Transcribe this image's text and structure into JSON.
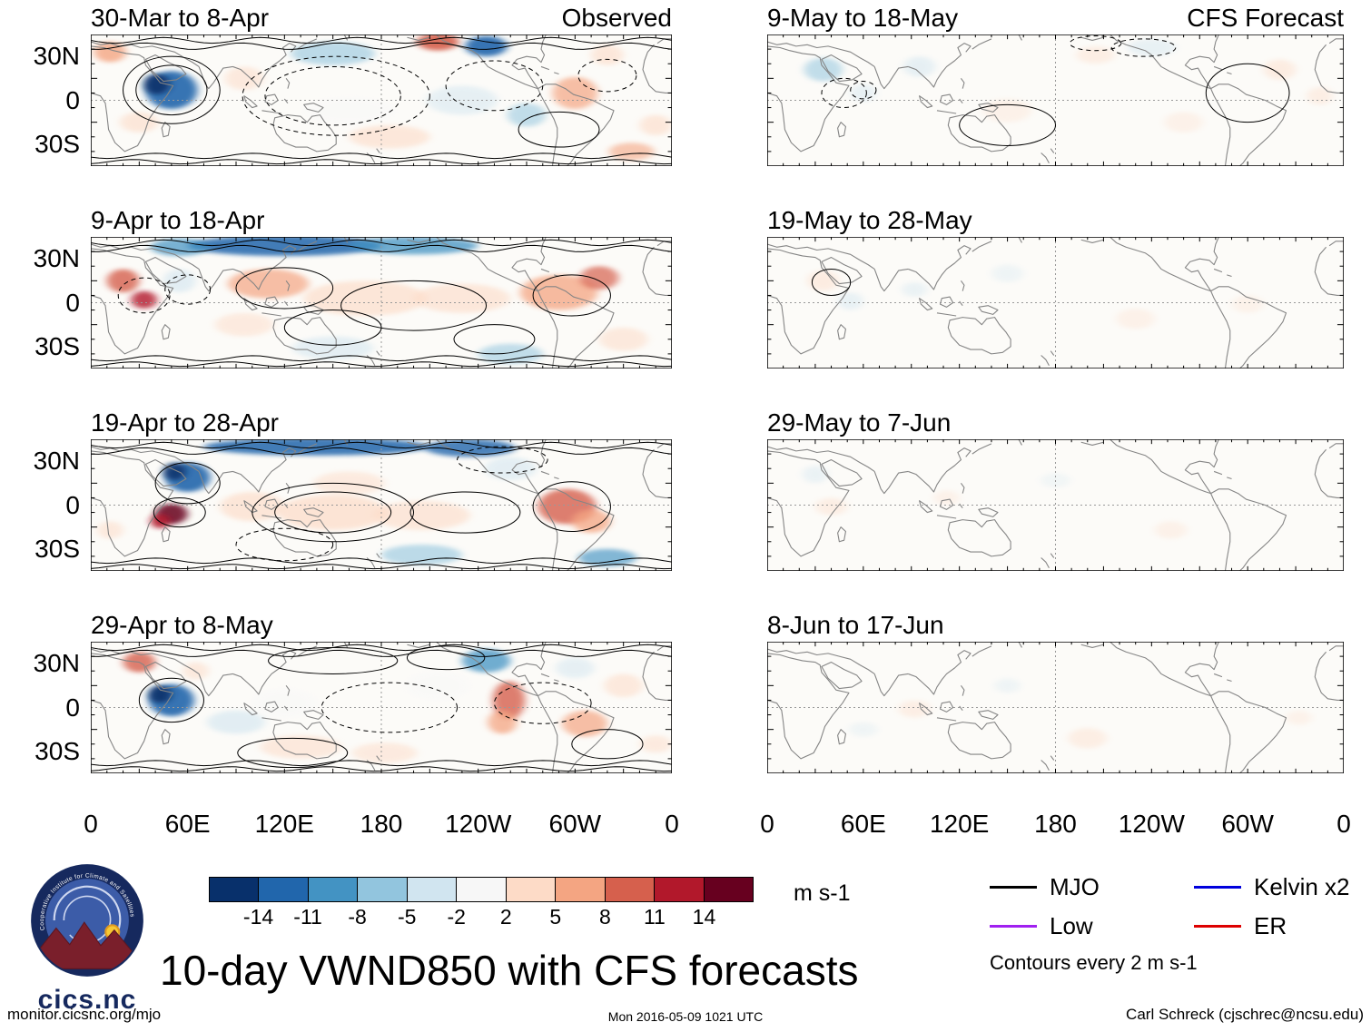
{
  "observed_header": "Observed",
  "forecast_header": "CFS Forecast",
  "axes": {
    "y_ticks": [
      "30N",
      "0",
      "30S"
    ],
    "x_ticks": [
      "0",
      "60E",
      "120E",
      "180",
      "120W",
      "60W",
      "0"
    ]
  },
  "colorbar": {
    "tick_labels": [
      "-14",
      "-11",
      "-8",
      "-5",
      "-2",
      "2",
      "5",
      "8",
      "11",
      "14"
    ],
    "units_label": "m s-1"
  },
  "legend": {
    "items": [
      {
        "label": "MJO",
        "color": "#000000"
      },
      {
        "label": "Kelvin x2",
        "color": "#0000dd"
      },
      {
        "label": "Low",
        "color": "#a020f0"
      },
      {
        "label": "ER",
        "color": "#dd0000"
      }
    ],
    "note": "Contours every 2 m s-1"
  },
  "title": "10-day VWND850 with CFS forecasts",
  "logo": {
    "name": "cics.nc",
    "ring_text": "Cooperative Institute for Climate and Satellites"
  },
  "footer": {
    "left": "monitor.cicsnc.org/mjo",
    "center": "Mon 2016-05-09 1021 UTC",
    "right": "Carl Schreck (cjschrec@ncsu.edu)"
  },
  "chart_data": {
    "type": "heatmap",
    "variable": "VWND850 anomaly maps with CFS forecasts",
    "units": "m s-1",
    "contour_interval": "Contours every 2 m s-1",
    "lon_range": [
      0,
      360
    ],
    "lat_labels": [
      "30N",
      "0",
      "30S"
    ],
    "x_tick_degrees": [
      0,
      60,
      120,
      180,
      240,
      300,
      360
    ],
    "colorbar": {
      "boundaries": [
        -14,
        -11,
        -8,
        -5,
        -2,
        2,
        5,
        8,
        11,
        14
      ],
      "colors": [
        "#08306b",
        "#2166ac",
        "#4393c3",
        "#92c5de",
        "#d1e5f0",
        "#f7f7f7",
        "#fddbc7",
        "#f4a582",
        "#d6604d",
        "#b2182b",
        "#67001f"
      ]
    },
    "panels": {
      "observed": [
        {
          "title": "30-Mar to 8-Apr",
          "waves": true,
          "blobs": [
            [
              50,
              38,
              16,
              13,
              1,
              0.9
            ],
            [
              41,
              34,
              8,
              7,
              0,
              0.9
            ],
            [
              12,
              12,
              10,
              7,
              7,
              0.8
            ],
            [
              30,
              60,
              12,
              7,
              6,
              0.6
            ],
            [
              95,
              30,
              12,
              8,
              6,
              0.55
            ],
            [
              150,
              13,
              26,
              8,
              3,
              0.6
            ],
            [
              215,
              5,
              13,
              6,
              8,
              0.9
            ],
            [
              245,
              8,
              13,
              7,
              1,
              0.9
            ],
            [
              230,
              45,
              22,
              10,
              4,
              0.5
            ],
            [
              185,
              70,
              25,
              8,
              6,
              0.6
            ],
            [
              160,
              52,
              28,
              9,
              5,
              0.45
            ],
            [
              270,
              55,
              12,
              8,
              3,
              0.55
            ],
            [
              300,
              40,
              14,
              11,
              7,
              0.7
            ],
            [
              320,
              14,
              10,
              7,
              6,
              0.6
            ],
            [
              350,
              62,
              10,
              7,
              6,
              0.6
            ],
            [
              335,
              80,
              14,
              6,
              7,
              0.6
            ]
          ],
          "contours": [
            [
              50,
              38,
              22,
              17,
              0
            ],
            [
              50,
              38,
              30,
              23,
              0
            ],
            [
              150,
              42,
              42,
              20,
              1
            ],
            [
              152,
              42,
              58,
              27,
              1
            ],
            [
              250,
              35,
              30,
              17,
              1
            ],
            [
              320,
              28,
              18,
              11,
              1
            ],
            [
              290,
              65,
              25,
              12,
              0
            ]
          ]
        },
        {
          "title": "9-Apr to 18-Apr",
          "waves": true,
          "blobs": [
            [
              120,
              6,
              60,
              7,
              1,
              0.85
            ],
            [
              200,
              6,
              40,
              6,
              2,
              0.75
            ],
            [
              55,
              7,
              18,
              6,
              2,
              0.7
            ],
            [
              20,
              30,
              10,
              8,
              8,
              0.8
            ],
            [
              33,
              43,
              8,
              6,
              9,
              0.8
            ],
            [
              55,
              30,
              10,
              8,
              4,
              0.6
            ],
            [
              110,
              32,
              25,
              10,
              7,
              0.7
            ],
            [
              170,
              42,
              38,
              12,
              6,
              0.65
            ],
            [
              230,
              42,
              30,
              10,
              6,
              0.6
            ],
            [
              290,
              38,
              24,
              12,
              7,
              0.75
            ],
            [
              315,
              28,
              12,
              8,
              8,
              0.7
            ],
            [
              150,
              76,
              25,
              8,
              4,
              0.55
            ],
            [
              260,
              80,
              20,
              7,
              3,
              0.55
            ],
            [
              330,
              70,
              15,
              8,
              6,
              0.55
            ],
            [
              95,
              60,
              18,
              8,
              6,
              0.5
            ]
          ],
          "contours": [
            [
              33,
              40,
              16,
              12,
              1
            ],
            [
              60,
              36,
              14,
              10,
              1
            ],
            [
              120,
              35,
              30,
              14,
              0
            ],
            [
              200,
              47,
              45,
              17,
              0
            ],
            [
              298,
              40,
              24,
              14,
              0
            ],
            [
              250,
              70,
              25,
              10,
              0
            ],
            [
              150,
              62,
              30,
              12,
              0
            ]
          ]
        },
        {
          "title": "19-Apr to 28-Apr",
          "waves": true,
          "blobs": [
            [
              140,
              5,
              70,
              6,
              1,
              0.85
            ],
            [
              235,
              6,
              28,
              6,
              1,
              0.8
            ],
            [
              60,
              26,
              14,
              10,
              1,
              0.9
            ],
            [
              52,
              22,
              7,
              6,
              0,
              0.85
            ],
            [
              50,
              51,
              10,
              7,
              10,
              0.85
            ],
            [
              43,
              56,
              6,
              5,
              9,
              0.85
            ],
            [
              100,
              46,
              20,
              10,
              6,
              0.65
            ],
            [
              150,
              50,
              34,
              12,
              6,
              0.7
            ],
            [
              205,
              52,
              30,
              10,
              6,
              0.6
            ],
            [
              160,
              30,
              22,
              8,
              6,
              0.5
            ],
            [
              295,
              46,
              18,
              12,
              8,
              0.8
            ],
            [
              310,
              56,
              12,
              8,
              7,
              0.75
            ],
            [
              205,
              79,
              25,
              7,
              3,
              0.6
            ],
            [
              320,
              81,
              18,
              6,
              2,
              0.65
            ],
            [
              260,
              20,
              16,
              8,
              4,
              0.55
            ],
            [
              12,
              62,
              8,
              6,
              6,
              0.55
            ]
          ],
          "contours": [
            [
              60,
              30,
              20,
              14,
              0
            ],
            [
              55,
              50,
              16,
              10,
              0
            ],
            [
              150,
              50,
              50,
              20,
              0
            ],
            [
              150,
              50,
              36,
              14,
              0
            ],
            [
              232,
              50,
              34,
              14,
              0
            ],
            [
              298,
              46,
              24,
              17,
              0
            ],
            [
              120,
              72,
              30,
              11,
              1
            ],
            [
              255,
              14,
              28,
              9,
              1
            ]
          ]
        },
        {
          "title": "29-Apr to 8-May",
          "waves": true,
          "blobs": [
            [
              50,
              40,
              14,
              11,
              1,
              0.9
            ],
            [
              43,
              36,
              7,
              6,
              0,
              0.9
            ],
            [
              30,
              14,
              10,
              7,
              8,
              0.8
            ],
            [
              65,
              20,
              8,
              6,
              6,
              0.55
            ],
            [
              90,
              55,
              18,
              8,
              4,
              0.6
            ],
            [
              120,
              42,
              20,
              10,
              5,
              0.45
            ],
            [
              245,
              13,
              15,
              8,
              2,
              0.75
            ],
            [
              259,
              40,
              10,
              13,
              8,
              0.8
            ],
            [
              255,
              55,
              9,
              8,
              7,
              0.75
            ],
            [
              130,
              72,
              25,
              8,
              6,
              0.55
            ],
            [
              182,
              76,
              20,
              7,
              6,
              0.5
            ],
            [
              306,
              56,
              14,
              9,
              7,
              0.7
            ],
            [
              330,
              30,
              12,
              8,
              6,
              0.55
            ],
            [
              215,
              30,
              20,
              10,
              5,
              0.4
            ],
            [
              300,
              18,
              12,
              7,
              4,
              0.5
            ],
            [
              350,
              70,
              10,
              6,
              6,
              0.5
            ]
          ],
          "contours": [
            [
              150,
              13,
              40,
              9,
              0
            ],
            [
              220,
              11,
              24,
              8,
              0
            ],
            [
              50,
              40,
              20,
              15,
              0
            ],
            [
              185,
              45,
              42,
              17,
              1
            ],
            [
              280,
              42,
              30,
              14,
              1
            ],
            [
              125,
              76,
              34,
              10,
              0
            ],
            [
              320,
              70,
              22,
              10,
              0
            ]
          ]
        }
      ],
      "forecast": [
        {
          "title": "9-May to 18-May",
          "waves": false,
          "blobs": [
            [
              35,
              24,
              12,
              8,
              3,
              0.55
            ],
            [
              95,
              22,
              10,
              7,
              4,
              0.5
            ],
            [
              60,
              40,
              8,
              6,
              4,
              0.45
            ],
            [
              205,
              14,
              12,
              6,
              6,
              0.4
            ],
            [
              240,
              9,
              15,
              6,
              4,
              0.45
            ],
            [
              320,
              24,
              10,
              7,
              6,
              0.45
            ],
            [
              345,
              42,
              8,
              6,
              6,
              0.4
            ],
            [
              150,
              52,
              15,
              8,
              6,
              0.3
            ],
            [
              260,
              60,
              12,
              7,
              6,
              0.3
            ]
          ],
          "contours": [
            [
              48,
              40,
              14,
              10,
              1
            ],
            [
              60,
              38,
              8,
              6,
              1
            ],
            [
              235,
              9,
              20,
              6,
              1
            ],
            [
              300,
              40,
              26,
              20,
              0
            ],
            [
              150,
              62,
              30,
              14,
              0
            ],
            [
              205,
              6,
              16,
              5,
              1
            ]
          ]
        },
        {
          "title": "19-May to 28-May",
          "waves": false,
          "blobs": [
            [
              35,
              30,
              10,
              7,
              6,
              0.45
            ],
            [
              52,
              44,
              8,
              6,
              4,
              0.45
            ],
            [
              92,
              36,
              8,
              5,
              4,
              0.4
            ],
            [
              230,
              56,
              12,
              7,
              6,
              0.3
            ],
            [
              300,
              46,
              10,
              6,
              6,
              0.28
            ],
            [
              150,
              25,
              10,
              6,
              4,
              0.3
            ]
          ],
          "contours": [
            [
              40,
              31,
              12,
              9,
              0
            ]
          ]
        },
        {
          "title": "29-May to 7-Jun",
          "waves": false,
          "blobs": [
            [
              40,
              46,
              10,
              6,
              6,
              0.4
            ],
            [
              30,
              24,
              8,
              6,
              4,
              0.4
            ],
            [
              112,
              40,
              8,
              5,
              6,
              0.3
            ],
            [
              252,
              62,
              10,
              6,
              6,
              0.3
            ],
            [
              180,
              28,
              9,
              5,
              4,
              0.25
            ]
          ],
          "contours": []
        },
        {
          "title": "8-Jun to 17-Jun",
          "waves": false,
          "blobs": [
            [
              92,
              46,
              10,
              6,
              6,
              0.38
            ],
            [
              200,
              66,
              12,
              7,
              6,
              0.4
            ],
            [
              150,
              30,
              8,
              5,
              4,
              0.3
            ],
            [
              332,
              52,
              8,
              5,
              6,
              0.28
            ],
            [
              60,
              60,
              9,
              5,
              4,
              0.28
            ]
          ],
          "contours": []
        }
      ]
    }
  }
}
